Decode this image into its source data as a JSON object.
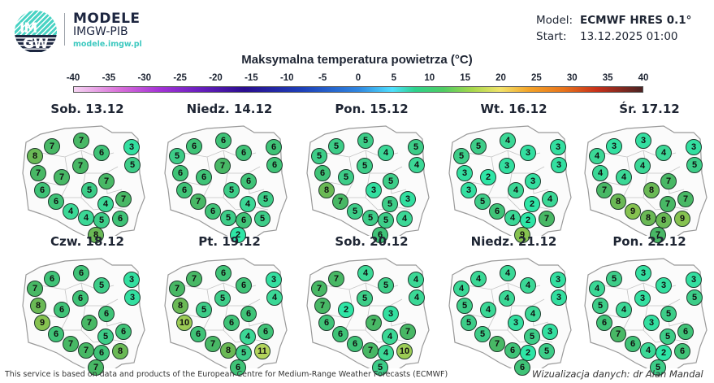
{
  "header": {
    "logo_text_top": "IM",
    "logo_text_bottom": "GW",
    "brand_title": "MODELE",
    "brand_subtitle": "IMGW-PIB",
    "brand_url": "modele.imgw.pl",
    "model_label": "Model:",
    "model_value": "ECMWF HRES 0.1°",
    "start_label": "Start:",
    "start_value": "13.12.2025 01:00"
  },
  "title": "Maksymalna temperatura powietrza (°C)",
  "colorbar": {
    "ticks": [
      "-40",
      "-35",
      "-30",
      "-25",
      "-20",
      "-15",
      "-10",
      "-5",
      "0",
      "5",
      "10",
      "15",
      "20",
      "25",
      "30",
      "35",
      "40"
    ],
    "min": -40,
    "max": 40
  },
  "colors": {
    "t2": "#2ee6a6",
    "t3": "#33dfa0",
    "t4": "#3bd896",
    "t5": "#3dcd88",
    "t6": "#3fc377",
    "t7": "#48b865",
    "t8": "#6ab955",
    "t9": "#86c250",
    "t10": "#9ccb55",
    "t11": "#b3d45c"
  },
  "panels": [
    {
      "label": "Sob. 13.12",
      "values": [
        8,
        7,
        7,
        6,
        3,
        5,
        7,
        7,
        7,
        7,
        5,
        6,
        6,
        4,
        7,
        4,
        4,
        5,
        6,
        8
      ]
    },
    {
      "label": "Niedz. 14.12",
      "values": [
        5,
        6,
        6,
        6,
        6,
        6,
        6,
        6,
        7,
        6,
        5,
        6,
        7,
        4,
        5,
        6,
        5,
        6,
        5,
        2
      ]
    },
    {
      "label": "Pon. 15.12",
      "values": [
        5,
        5,
        5,
        4,
        5,
        4,
        6,
        5,
        5,
        5,
        3,
        8,
        7,
        5,
        3,
        5,
        5,
        5,
        4,
        6
      ]
    },
    {
      "label": "Wt. 16.12",
      "values": [
        5,
        5,
        4,
        3,
        3,
        3,
        3,
        2,
        3,
        3,
        4,
        3,
        5,
        2,
        4,
        6,
        4,
        2,
        7,
        9
      ]
    },
    {
      "label": "Śr. 17.12",
      "values": [
        4,
        3,
        3,
        4,
        3,
        5,
        4,
        4,
        4,
        7,
        8,
        7,
        8,
        7,
        7,
        9,
        8,
        8,
        9,
        7
      ]
    },
    {
      "label": "Czw. 18.12",
      "values": [
        7,
        6,
        6,
        5,
        3,
        3,
        8,
        6,
        6,
        6,
        7,
        9,
        6,
        5,
        6,
        7,
        7,
        6,
        8,
        7
      ]
    },
    {
      "label": "Pt. 19.12",
      "values": [
        7,
        7,
        6,
        6,
        3,
        4,
        8,
        5,
        5,
        6,
        6,
        10,
        6,
        4,
        6,
        7,
        8,
        5,
        11,
        6
      ]
    },
    {
      "label": "Sob. 20.12",
      "values": [
        7,
        7,
        4,
        5,
        4,
        4,
        7,
        2,
        5,
        3,
        7,
        6,
        6,
        4,
        7,
        6,
        7,
        4,
        10,
        5
      ]
    },
    {
      "label": "Niedz. 21.12",
      "values": [
        4,
        4,
        4,
        4,
        3,
        3,
        5,
        4,
        4,
        4,
        3,
        5,
        5,
        5,
        3,
        7,
        6,
        2,
        5,
        6
      ]
    },
    {
      "label": "Pon. 22.12",
      "values": [
        4,
        5,
        3,
        3,
        3,
        5,
        5,
        4,
        3,
        5,
        3,
        6,
        7,
        5,
        6,
        6,
        4,
        2,
        6,
        5
      ]
    }
  ],
  "footer": {
    "attribution": "This service is based on data and products of the European Centre for Medium-Range Weather Forecasts (ECMWF)",
    "credit": "Wizualizacja danych: dr Alan Mandal"
  }
}
